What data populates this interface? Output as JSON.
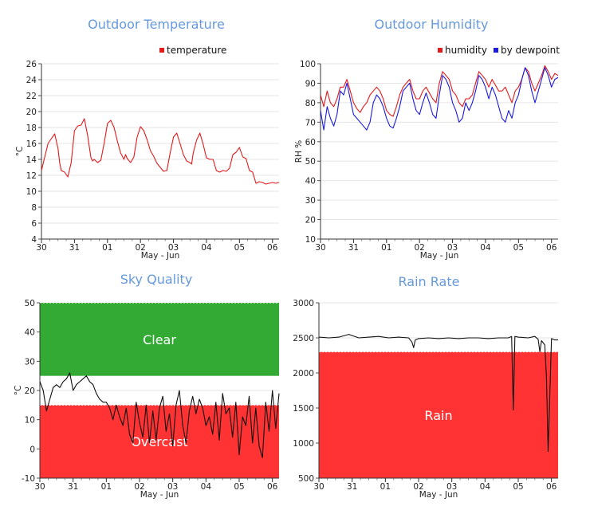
{
  "chart_data": [
    {
      "type": "line",
      "title": "Outdoor Temperature",
      "xlabel": "May - Jun",
      "ylabel": "°C",
      "ylim": [
        4,
        26
      ],
      "yticks": [
        4,
        6,
        8,
        10,
        12,
        14,
        16,
        18,
        20,
        22,
        24,
        26
      ],
      "xlim": [
        0,
        7.2
      ],
      "xticks": [
        {
          "x": 0,
          "label": "30"
        },
        {
          "x": 1,
          "label": "31"
        },
        {
          "x": 2,
          "label": "01"
        },
        {
          "x": 3,
          "label": "02"
        },
        {
          "x": 4,
          "label": "03"
        },
        {
          "x": 5,
          "label": "04"
        },
        {
          "x": 6,
          "label": "05"
        },
        {
          "x": 7,
          "label": "06"
        }
      ],
      "grid": true,
      "legend_position": "top-right",
      "series": [
        {
          "name": "temperature",
          "color": "#e31a1c",
          "x": [
            0,
            0.1,
            0.2,
            0.3,
            0.4,
            0.5,
            0.55,
            0.6,
            0.7,
            0.8,
            0.9,
            1.0,
            1.1,
            1.2,
            1.3,
            1.4,
            1.5,
            1.55,
            1.6,
            1.7,
            1.8,
            1.9,
            2.0,
            2.1,
            2.2,
            2.3,
            2.4,
            2.5,
            2.55,
            2.6,
            2.7,
            2.8,
            2.9,
            3.0,
            3.1,
            3.2,
            3.3,
            3.4,
            3.5,
            3.6,
            3.7,
            3.8,
            3.9,
            4.0,
            4.1,
            4.2,
            4.3,
            4.4,
            4.5,
            4.55,
            4.6,
            4.7,
            4.8,
            4.9,
            5.0,
            5.1,
            5.2,
            5.3,
            5.4,
            5.5,
            5.6,
            5.7,
            5.8,
            5.9,
            6.0,
            6.1,
            6.2,
            6.3,
            6.4,
            6.5,
            6.6,
            6.7,
            6.8,
            6.9,
            7.0,
            7.1,
            7.2
          ],
          "y": [
            12.6,
            14.3,
            16.0,
            16.6,
            17.2,
            15.4,
            13.6,
            12.6,
            12.4,
            11.8,
            13.6,
            17.6,
            18.2,
            18.3,
            19.1,
            17.0,
            14.2,
            13.8,
            14.0,
            13.6,
            13.9,
            16.0,
            18.5,
            18.9,
            18.0,
            16.3,
            14.8,
            14.0,
            14.6,
            14.1,
            13.6,
            14.3,
            16.8,
            18.1,
            17.6,
            16.5,
            15.1,
            14.4,
            13.5,
            13.0,
            12.5,
            12.6,
            14.8,
            16.8,
            17.3,
            16.0,
            14.6,
            13.8,
            13.6,
            13.4,
            14.8,
            16.4,
            17.3,
            15.9,
            14.2,
            14.0,
            14.0,
            12.6,
            12.4,
            12.6,
            12.5,
            12.9,
            14.6,
            14.9,
            15.5,
            14.3,
            14.1,
            12.6,
            12.4,
            11.0,
            11.2,
            11.1,
            10.9,
            11.0,
            11.1,
            11.0,
            11.1
          ]
        }
      ]
    },
    {
      "type": "line",
      "title": "Outdoor Humidity",
      "xlabel": "May - Jun",
      "ylabel": "RH %",
      "ylim": [
        10,
        100
      ],
      "yticks": [
        10,
        20,
        30,
        40,
        50,
        60,
        70,
        80,
        90,
        100
      ],
      "xlim": [
        0,
        7.2
      ],
      "xticks": [
        {
          "x": 0,
          "label": "30"
        },
        {
          "x": 1,
          "label": "31"
        },
        {
          "x": 2,
          "label": "01"
        },
        {
          "x": 3,
          "label": "02"
        },
        {
          "x": 4,
          "label": "03"
        },
        {
          "x": 5,
          "label": "04"
        },
        {
          "x": 6,
          "label": "05"
        },
        {
          "x": 7,
          "label": "06"
        }
      ],
      "grid": true,
      "legend_position": "top-right",
      "series": [
        {
          "name": "humidity",
          "color": "#e31a1c",
          "x": [
            0,
            0.1,
            0.2,
            0.3,
            0.4,
            0.5,
            0.6,
            0.7,
            0.8,
            0.9,
            1.0,
            1.1,
            1.2,
            1.3,
            1.4,
            1.5,
            1.6,
            1.7,
            1.8,
            1.9,
            2.0,
            2.1,
            2.2,
            2.3,
            2.4,
            2.5,
            2.6,
            2.7,
            2.8,
            2.9,
            3.0,
            3.1,
            3.2,
            3.3,
            3.4,
            3.5,
            3.6,
            3.7,
            3.8,
            3.9,
            4.0,
            4.1,
            4.2,
            4.3,
            4.4,
            4.5,
            4.6,
            4.7,
            4.8,
            4.9,
            5.0,
            5.1,
            5.2,
            5.3,
            5.4,
            5.5,
            5.6,
            5.7,
            5.8,
            5.9,
            6.0,
            6.1,
            6.2,
            6.3,
            6.4,
            6.5,
            6.6,
            6.7,
            6.8,
            6.9,
            7.0,
            7.1,
            7.2
          ],
          "y": [
            84,
            78,
            86,
            80,
            78,
            82,
            88,
            88,
            92,
            86,
            80,
            77,
            75,
            78,
            80,
            84,
            86,
            88,
            86,
            82,
            76,
            74,
            73,
            78,
            84,
            88,
            90,
            92,
            86,
            82,
            82,
            86,
            88,
            85,
            82,
            80,
            90,
            96,
            94,
            92,
            86,
            84,
            80,
            78,
            82,
            82,
            84,
            90,
            96,
            94,
            92,
            88,
            92,
            89,
            86,
            86,
            88,
            84,
            80,
            86,
            88,
            92,
            98,
            96,
            90,
            86,
            90,
            94,
            99,
            96,
            92,
            95,
            94
          ]
        },
        {
          "name": "by dewpoint",
          "color": "#1a1ae3",
          "x": [
            0,
            0.1,
            0.2,
            0.3,
            0.4,
            0.5,
            0.6,
            0.7,
            0.8,
            0.9,
            1.0,
            1.1,
            1.2,
            1.3,
            1.4,
            1.5,
            1.6,
            1.7,
            1.8,
            1.9,
            2.0,
            2.1,
            2.2,
            2.3,
            2.4,
            2.5,
            2.6,
            2.7,
            2.8,
            2.9,
            3.0,
            3.1,
            3.2,
            3.3,
            3.4,
            3.5,
            3.6,
            3.7,
            3.8,
            3.9,
            4.0,
            4.1,
            4.2,
            4.3,
            4.4,
            4.5,
            4.6,
            4.7,
            4.8,
            4.9,
            5.0,
            5.1,
            5.2,
            5.3,
            5.4,
            5.5,
            5.6,
            5.7,
            5.8,
            5.9,
            6.0,
            6.1,
            6.2,
            6.3,
            6.4,
            6.5,
            6.6,
            6.7,
            6.8,
            6.9,
            7.0,
            7.1,
            7.2
          ],
          "y": [
            76,
            66,
            78,
            72,
            68,
            74,
            86,
            84,
            90,
            82,
            74,
            72,
            70,
            68,
            66,
            70,
            80,
            84,
            82,
            78,
            72,
            68,
            67,
            72,
            78,
            86,
            88,
            90,
            82,
            76,
            74,
            80,
            85,
            80,
            74,
            72,
            84,
            94,
            92,
            88,
            80,
            76,
            70,
            72,
            80,
            76,
            80,
            86,
            94,
            92,
            88,
            82,
            88,
            84,
            78,
            72,
            70,
            76,
            72,
            80,
            84,
            92,
            98,
            94,
            86,
            80,
            86,
            92,
            98,
            94,
            88,
            92,
            93
          ]
        }
      ]
    },
    {
      "type": "line",
      "title": "Sky Quality",
      "xlabel": "May - Jun",
      "ylabel": "°C",
      "ylim": [
        -10,
        50
      ],
      "yticks": [
        -10,
        0,
        10,
        20,
        30,
        40,
        50
      ],
      "xlim": [
        0,
        7.2
      ],
      "xticks": [
        {
          "x": 0,
          "label": "30"
        },
        {
          "x": 1,
          "label": "31"
        },
        {
          "x": 2,
          "label": "01"
        },
        {
          "x": 3,
          "label": "02"
        },
        {
          "x": 4,
          "label": "03"
        },
        {
          "x": 5,
          "label": "04"
        },
        {
          "x": 6,
          "label": "05"
        },
        {
          "x": 7,
          "label": "06"
        }
      ],
      "grid": true,
      "bands": [
        {
          "label": "Clear",
          "from": 25,
          "to": 50,
          "color": "#33aa33"
        },
        {
          "label": "Overcast",
          "from": -10,
          "to": 15,
          "color": "#ff3333"
        }
      ],
      "series": [
        {
          "name": "",
          "color": "#111111",
          "x": [
            0,
            0.1,
            0.2,
            0.3,
            0.4,
            0.5,
            0.6,
            0.7,
            0.8,
            0.9,
            1.0,
            1.1,
            1.2,
            1.3,
            1.4,
            1.5,
            1.6,
            1.7,
            1.8,
            1.9,
            2.0,
            2.1,
            2.2,
            2.3,
            2.4,
            2.5,
            2.6,
            2.7,
            2.8,
            2.9,
            3.0,
            3.1,
            3.2,
            3.3,
            3.4,
            3.5,
            3.6,
            3.7,
            3.8,
            3.9,
            4.0,
            4.1,
            4.2,
            4.3,
            4.4,
            4.5,
            4.6,
            4.7,
            4.8,
            4.9,
            5.0,
            5.1,
            5.2,
            5.3,
            5.4,
            5.5,
            5.6,
            5.7,
            5.8,
            5.9,
            6.0,
            6.1,
            6.2,
            6.3,
            6.4,
            6.5,
            6.6,
            6.7,
            6.8,
            6.9,
            7.0,
            7.1,
            7.2
          ],
          "y": [
            23,
            20,
            13,
            17,
            21,
            22,
            21,
            23,
            24,
            26,
            20,
            22,
            23,
            24,
            25,
            23,
            22,
            19,
            17,
            16,
            16,
            14,
            10,
            15,
            11,
            8,
            14,
            5,
            2,
            16,
            9,
            4,
            15,
            2,
            13,
            3,
            14,
            18,
            6,
            12,
            1,
            15,
            20,
            8,
            2,
            13,
            18,
            12,
            17,
            14,
            8,
            11,
            5,
            16,
            3,
            19,
            12,
            14,
            4,
            16,
            -2,
            11,
            8,
            18,
            2,
            14,
            1,
            -3,
            16,
            6,
            20,
            7,
            19
          ]
        }
      ]
    },
    {
      "type": "line",
      "title": "Rain Rate",
      "xlabel": "May - Jun",
      "ylabel": "",
      "ylim": [
        500,
        3000
      ],
      "yticks": [
        500,
        1000,
        1500,
        2000,
        2500,
        3000
      ],
      "xlim": [
        0,
        7.2
      ],
      "xticks": [
        {
          "x": 0,
          "label": "30"
        },
        {
          "x": 1,
          "label": "31"
        },
        {
          "x": 2,
          "label": "01"
        },
        {
          "x": 3,
          "label": "02"
        },
        {
          "x": 4,
          "label": "03"
        },
        {
          "x": 5,
          "label": "04"
        },
        {
          "x": 6,
          "label": "05"
        },
        {
          "x": 7,
          "label": "06"
        }
      ],
      "grid": true,
      "bands": [
        {
          "label": "Rain",
          "from": 500,
          "to": 2300,
          "color": "#ff3333"
        }
      ],
      "series": [
        {
          "name": "",
          "color": "#111111",
          "x": [
            0,
            0.3,
            0.6,
            0.9,
            1.2,
            1.5,
            1.8,
            2.1,
            2.4,
            2.7,
            2.8,
            2.85,
            2.9,
            3.0,
            3.3,
            3.6,
            3.9,
            4.2,
            4.5,
            4.8,
            5.1,
            5.4,
            5.7,
            5.8,
            5.85,
            5.9,
            6.0,
            6.3,
            6.5,
            6.6,
            6.65,
            6.7,
            6.8,
            6.85,
            6.9,
            7.0,
            7.1,
            7.2
          ],
          "y": [
            2510,
            2500,
            2510,
            2550,
            2500,
            2510,
            2520,
            2500,
            2510,
            2500,
            2440,
            2360,
            2470,
            2490,
            2500,
            2490,
            2500,
            2490,
            2500,
            2500,
            2490,
            2500,
            2500,
            2520,
            1470,
            2520,
            2510,
            2500,
            2520,
            2480,
            2300,
            2460,
            2400,
            1930,
            880,
            2490,
            2470,
            2470
          ]
        }
      ]
    }
  ]
}
